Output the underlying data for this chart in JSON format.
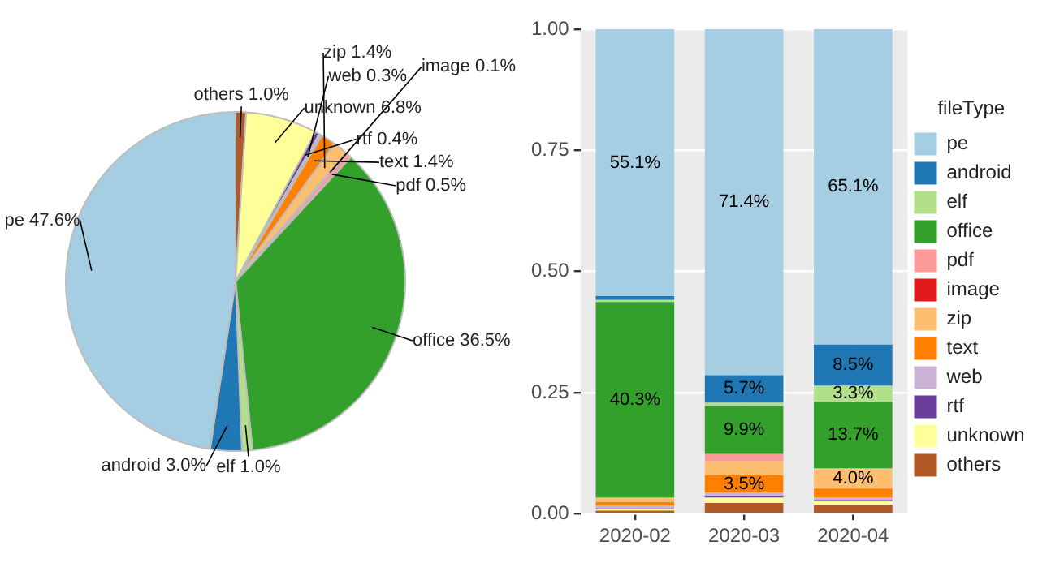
{
  "chart_data": [
    {
      "type": "pie",
      "categories": [
        "others",
        "unknown",
        "rtf",
        "web",
        "text",
        "zip",
        "image",
        "pdf",
        "office",
        "elf",
        "android",
        "pe"
      ],
      "values": [
        1.0,
        6.8,
        0.4,
        0.3,
        1.4,
        1.4,
        0.1,
        0.5,
        36.5,
        1.0,
        3.0,
        47.6
      ],
      "colors": [
        "#b15928",
        "#ffff99",
        "#6a3d9a",
        "#cab2d6",
        "#ff7f00",
        "#fdbf6f",
        "#e31a1c",
        "#fb9a99",
        "#33a02c",
        "#b2df8a",
        "#1f78b4",
        "#a6cee3"
      ],
      "value_labels": [
        "1.0%",
        "6.8%",
        "0.4%",
        "0.3%",
        "1.4%",
        "1.4%",
        "0.1%",
        "0.5%",
        "36.5%",
        "1.0%",
        "3.0%",
        "47.6%"
      ]
    },
    {
      "type": "bar",
      "stacked": true,
      "categories": [
        "2020-02",
        "2020-03",
        "2020-04"
      ],
      "ylim": [
        0,
        1
      ],
      "yticks": [
        {
          "value": 0,
          "label": "0.00"
        },
        {
          "value": 0.25,
          "label": "0.25"
        },
        {
          "value": 0.5,
          "label": "0.50"
        },
        {
          "value": 0.75,
          "label": "0.75"
        },
        {
          "value": 1,
          "label": "1.00"
        }
      ],
      "grid": true,
      "legend": "right",
      "legend_title": "fileType",
      "series": [
        {
          "name": "others",
          "color": "#b15928",
          "values": [
            0.006,
            0.022,
            0.018
          ],
          "value_labels": [
            null,
            null,
            null
          ]
        },
        {
          "name": "unknown",
          "color": "#ffff99",
          "values": [
            0.003,
            0.011,
            0.008
          ],
          "value_labels": [
            null,
            null,
            null
          ]
        },
        {
          "name": "rtf",
          "color": "#6a3d9a",
          "values": [
            0.002,
            0.003,
            0.002
          ],
          "value_labels": [
            null,
            null,
            null
          ]
        },
        {
          "name": "web",
          "color": "#cab2d6",
          "values": [
            0.006,
            0.008,
            0.006
          ],
          "value_labels": [
            null,
            null,
            null
          ]
        },
        {
          "name": "text",
          "color": "#ff7f00",
          "values": [
            0.007,
            0.035,
            0.018
          ],
          "value_labels": [
            null,
            "3.5%",
            null
          ]
        },
        {
          "name": "zip",
          "color": "#fdbf6f",
          "values": [
            0.008,
            0.029,
            0.04
          ],
          "value_labels": [
            null,
            null,
            "4.0%"
          ]
        },
        {
          "name": "image",
          "color": "#e31a1c",
          "values": [
            0,
            0,
            0
          ],
          "value_labels": [
            null,
            null,
            null
          ]
        },
        {
          "name": "pdf",
          "color": "#fb9a99",
          "values": [
            0.002,
            0.015,
            0.002
          ],
          "value_labels": [
            null,
            null,
            null
          ]
        },
        {
          "name": "office",
          "color": "#33a02c",
          "values": [
            0.403,
            0.099,
            0.137
          ],
          "value_labels": [
            "40.3%",
            "9.9%",
            "13.7%"
          ]
        },
        {
          "name": "elf",
          "color": "#b2df8a",
          "values": [
            0.004,
            0.007,
            0.033
          ],
          "value_labels": [
            null,
            null,
            "3.3%"
          ]
        },
        {
          "name": "android",
          "color": "#1f78b4",
          "values": [
            0.008,
            0.057,
            0.085
          ],
          "value_labels": [
            null,
            "5.7%",
            "8.5%"
          ]
        },
        {
          "name": "pe",
          "color": "#a6cee3",
          "values": [
            0.551,
            0.714,
            0.651
          ],
          "value_labels": [
            "55.1%",
            "71.4%",
            "65.1%"
          ]
        }
      ]
    }
  ]
}
